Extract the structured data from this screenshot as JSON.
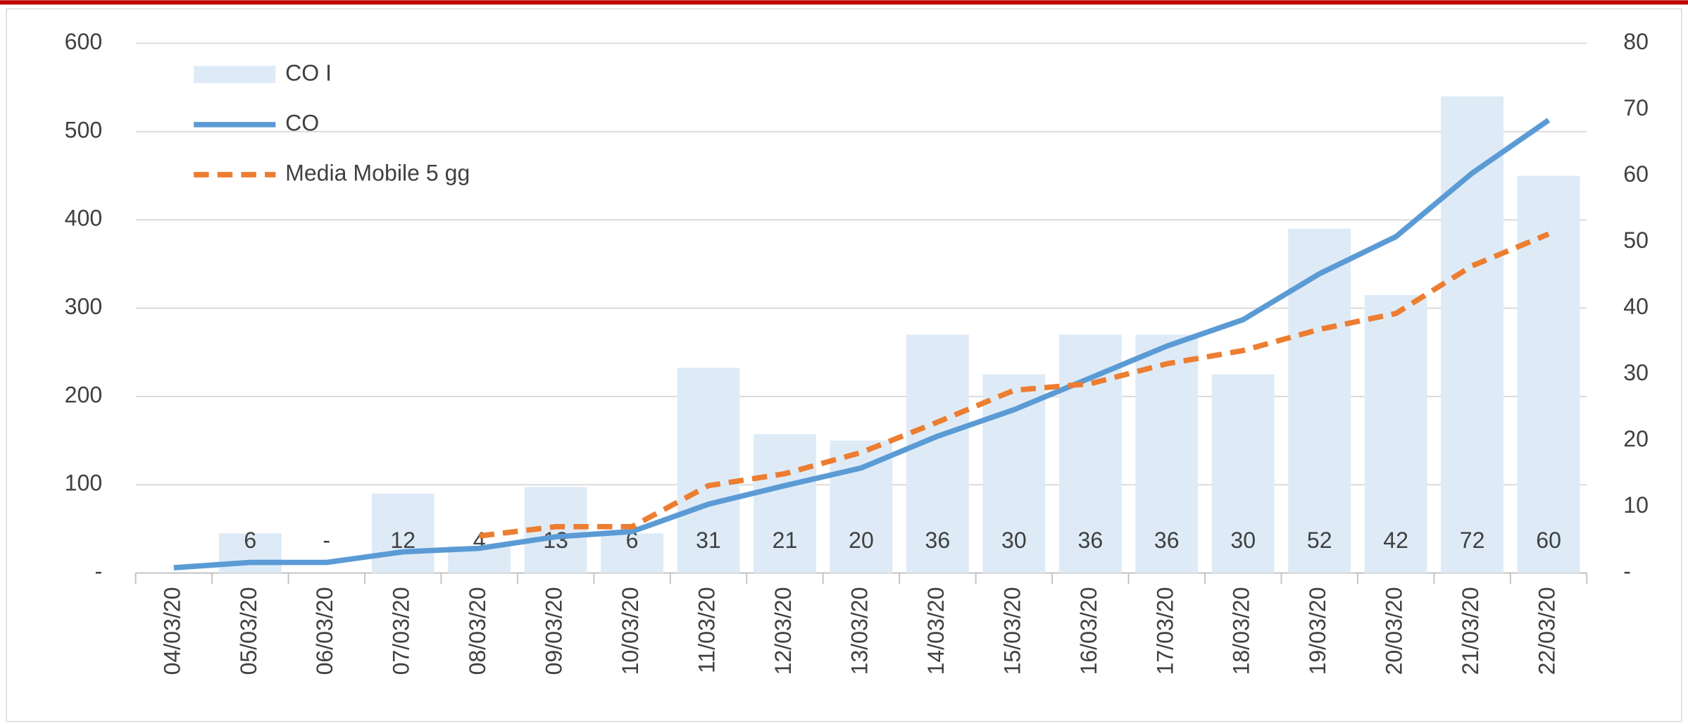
{
  "chart_data": {
    "type": "combo",
    "categories": [
      "04/03/20",
      "05/03/20",
      "06/03/20",
      "07/03/20",
      "08/03/20",
      "09/03/20",
      "10/03/20",
      "11/03/20",
      "12/03/20",
      "13/03/20",
      "14/03/20",
      "15/03/20",
      "16/03/20",
      "17/03/20",
      "18/03/20",
      "19/03/20",
      "20/03/20",
      "21/03/20",
      "22/03/20"
    ],
    "series": [
      {
        "name": "CO I",
        "type": "bar",
        "axis": "y2",
        "color": "#deebf7",
        "values": [
          null,
          6,
          0,
          12,
          4,
          13,
          6,
          31,
          21,
          20,
          36,
          30,
          36,
          36,
          30,
          52,
          42,
          72,
          60
        ],
        "value_labels": [
          null,
          "6",
          "-",
          "12",
          "4",
          "13",
          "6",
          "31",
          "21",
          "20",
          "36",
          "30",
          "36",
          "36",
          "30",
          "52",
          "42",
          "72",
          "60"
        ]
      },
      {
        "name": "CO",
        "type": "line",
        "color": "#5b9bd5",
        "values": [
          6,
          12,
          12,
          24,
          28,
          41,
          47,
          78,
          99,
          119,
          155,
          185,
          221,
          257,
          287,
          339,
          381,
          453,
          513
        ]
      },
      {
        "name": "Media Mobile 5 gg",
        "type": "line",
        "dashed": true,
        "axis": "y2",
        "color": "#ed7d31",
        "values": [
          null,
          null,
          null,
          null,
          5.6,
          7,
          7,
          13.2,
          15,
          18.2,
          22.8,
          27.6,
          28.6,
          31.6,
          33.6,
          36.8,
          39.2,
          46.4,
          51.2
        ]
      }
    ],
    "ylim": [
      0,
      600
    ],
    "yticks": [
      {
        "value": 0,
        "label": "-"
      },
      100,
      200,
      300,
      400,
      500,
      600
    ],
    "y2lim": [
      0,
      80
    ],
    "y2ticks": [
      {
        "value": 0,
        "label": "-"
      },
      10,
      20,
      30,
      40,
      50,
      60,
      70,
      80
    ],
    "grid": true,
    "legend": "top-left"
  }
}
